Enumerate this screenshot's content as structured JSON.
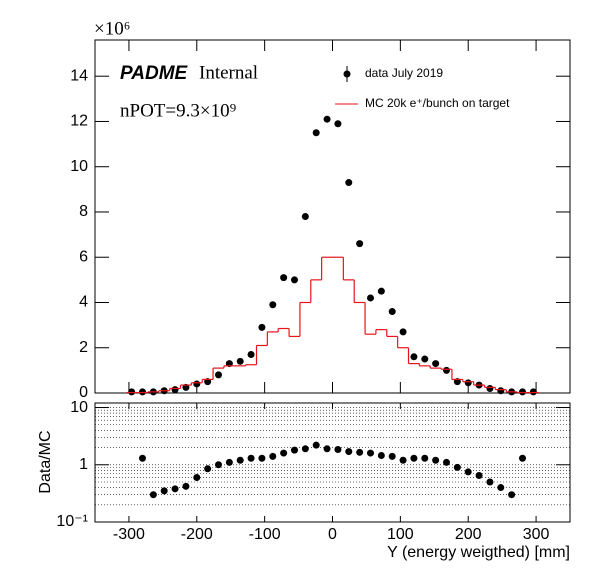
{
  "chart_data": [
    {
      "type": "scatter",
      "ylabel_scale": "×10⁶",
      "annotations": {
        "experiment": "PADME",
        "status": "Internal",
        "npot": "nPOT=9.3×10⁹"
      },
      "xlim": [
        -350,
        350
      ],
      "xticks": [
        -300,
        -200,
        -100,
        0,
        100,
        200,
        300
      ],
      "ylim": [
        0,
        15.6
      ],
      "yticks": [
        0,
        2,
        4,
        6,
        8,
        10,
        12,
        14
      ],
      "series": [
        {
          "name": "data July 2019",
          "style": "points",
          "color": "#000000",
          "x": [
            -296,
            -280,
            -264,
            -248,
            -232,
            -216,
            -200,
            -184,
            -168,
            -152,
            -136,
            -120,
            -104,
            -88,
            -72,
            -56,
            -40,
            -24,
            -8,
            8,
            24,
            40,
            56,
            72,
            88,
            104,
            120,
            136,
            152,
            168,
            184,
            200,
            216,
            232,
            248,
            264,
            280,
            296
          ],
          "values": [
            0.05,
            0.05,
            0.05,
            0.1,
            0.15,
            0.25,
            0.4,
            0.5,
            0.8,
            1.3,
            1.4,
            1.7,
            2.9,
            3.9,
            5.1,
            5.0,
            7.8,
            11.5,
            12.1,
            11.9,
            9.3,
            6.6,
            4.2,
            4.5,
            3.6,
            2.7,
            1.6,
            1.5,
            1.3,
            1.0,
            0.5,
            0.45,
            0.35,
            0.2,
            0.1,
            0.05,
            0.05,
            0.05
          ]
        },
        {
          "name": "MC 20k e⁺/bunch on target",
          "style": "step",
          "color": "#e8141c",
          "bins": [
            -304,
            -288,
            -272,
            -256,
            -240,
            -224,
            -208,
            -192,
            -176,
            -160,
            -144,
            -128,
            -112,
            -96,
            -80,
            -64,
            -48,
            -32,
            -16,
            0,
            16,
            32,
            48,
            64,
            80,
            96,
            112,
            128,
            144,
            160,
            176,
            192,
            208,
            224,
            240,
            256,
            272,
            288,
            304
          ],
          "values": [
            0.02,
            0.02,
            0.05,
            0.1,
            0.2,
            0.35,
            0.45,
            0.6,
            1.1,
            1.2,
            1.2,
            1.25,
            2.1,
            2.7,
            2.85,
            2.5,
            4.0,
            5.0,
            6.0,
            6.0,
            5.0,
            4.0,
            2.6,
            2.8,
            2.5,
            2.0,
            1.3,
            1.2,
            1.1,
            1.05,
            0.6,
            0.5,
            0.35,
            0.25,
            0.15,
            0.05,
            0.02,
            0.02
          ]
        }
      ]
    },
    {
      "type": "scatter",
      "ylog": true,
      "xlabel": "Y (energy weigthed) [mm]",
      "ylabel": "Data/MC",
      "xlim": [
        -350,
        350
      ],
      "xticks": [
        -300,
        -200,
        -100,
        0,
        100,
        200,
        300
      ],
      "ylim": [
        0.1,
        12
      ],
      "yticks": [
        {
          "value": 0.1,
          "label": "10⁻¹"
        },
        1,
        10
      ],
      "grid": true,
      "minor_grid": [
        0.2,
        0.3,
        0.4,
        0.5,
        0.6,
        0.7,
        0.8,
        0.9,
        2,
        3,
        4,
        5,
        6,
        7,
        8,
        9
      ],
      "color": "#000000",
      "x": [
        -280,
        -264,
        -248,
        -232,
        -216,
        -200,
        -184,
        -168,
        -152,
        -136,
        -120,
        -104,
        -88,
        -72,
        -56,
        -40,
        -24,
        -8,
        8,
        24,
        40,
        56,
        72,
        88,
        104,
        120,
        136,
        152,
        168,
        184,
        200,
        216,
        232,
        248,
        264,
        280
      ],
      "values": [
        1.3,
        0.3,
        0.35,
        0.38,
        0.42,
        0.6,
        0.85,
        1.0,
        1.1,
        1.2,
        1.3,
        1.3,
        1.4,
        1.6,
        1.8,
        1.9,
        2.2,
        1.9,
        1.85,
        1.7,
        1.65,
        1.6,
        1.45,
        1.4,
        1.2,
        1.3,
        1.3,
        1.2,
        1.1,
        0.9,
        0.75,
        0.65,
        0.5,
        0.4,
        0.3,
        1.3
      ]
    }
  ]
}
